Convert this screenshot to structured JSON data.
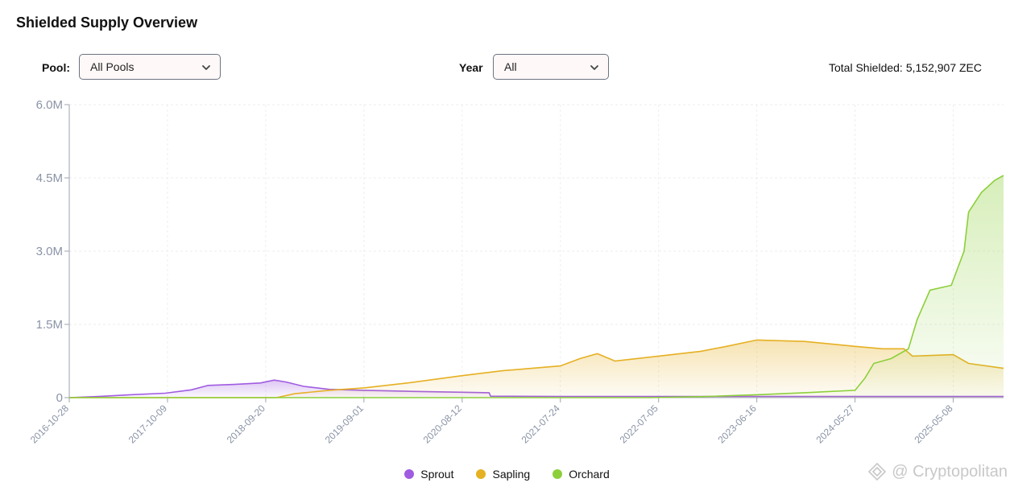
{
  "header": {
    "title": "Shielded Supply Overview"
  },
  "filters": {
    "pool_label": "Pool:",
    "pool_value": "All Pools",
    "year_label": "Year",
    "year_value": "All"
  },
  "summary": {
    "total_label": "Total Shielded:",
    "total_value": "5,152,907 ZEC"
  },
  "watermark": {
    "text": "@ Cryptopolitan"
  },
  "colors": {
    "sprout": "#a05ce0",
    "sapling": "#e6b023",
    "orchard": "#8ccf3a"
  },
  "chart_data": {
    "type": "area",
    "title": "Shielded Supply Overview",
    "xlabel": "",
    "ylabel": "",
    "x_ticks": [
      "2016-10-28",
      "2017-10-09",
      "2018-09-20",
      "2019-09-01",
      "2020-08-12",
      "2021-07-24",
      "2022-07-05",
      "2023-06-16",
      "2024-05-27",
      "2025-05-08"
    ],
    "xlim": [
      "2016-10-28",
      "2025-11-01"
    ],
    "y_ticks": [
      "0",
      "1.5M",
      "3.0M",
      "4.5M",
      "6.0M"
    ],
    "ylim": [
      0,
      6000000
    ],
    "grid": true,
    "legend_position": "bottom",
    "series": [
      {
        "name": "Sprout",
        "points": [
          [
            "2016-10-28",
            0
          ],
          [
            "2017-03-01",
            30000
          ],
          [
            "2017-06-01",
            60000
          ],
          [
            "2017-10-01",
            90000
          ],
          [
            "2018-01-01",
            160000
          ],
          [
            "2018-03-01",
            250000
          ],
          [
            "2018-06-01",
            270000
          ],
          [
            "2018-09-01",
            300000
          ],
          [
            "2018-10-20",
            360000
          ],
          [
            "2018-12-01",
            320000
          ],
          [
            "2019-02-01",
            230000
          ],
          [
            "2019-05-01",
            170000
          ],
          [
            "2019-09-01",
            150000
          ],
          [
            "2020-02-01",
            130000
          ],
          [
            "2020-08-12",
            110000
          ],
          [
            "2020-11-15",
            100000
          ],
          [
            "2020-11-20",
            30000
          ],
          [
            "2021-07-24",
            25000
          ],
          [
            "2022-07-05",
            25000
          ],
          [
            "2023-06-16",
            25000
          ],
          [
            "2024-05-27",
            25000
          ],
          [
            "2025-05-08",
            25000
          ],
          [
            "2025-11-01",
            25000
          ]
        ]
      },
      {
        "name": "Sapling",
        "points": [
          [
            "2016-10-28",
            0
          ],
          [
            "2018-10-28",
            0
          ],
          [
            "2019-01-01",
            80000
          ],
          [
            "2019-05-01",
            150000
          ],
          [
            "2019-09-01",
            200000
          ],
          [
            "2020-02-01",
            300000
          ],
          [
            "2020-08-12",
            450000
          ],
          [
            "2021-01-01",
            550000
          ],
          [
            "2021-07-24",
            650000
          ],
          [
            "2021-10-01",
            800000
          ],
          [
            "2021-12-01",
            900000
          ],
          [
            "2022-02-01",
            750000
          ],
          [
            "2022-07-05",
            850000
          ],
          [
            "2022-12-01",
            950000
          ],
          [
            "2023-03-01",
            1050000
          ],
          [
            "2023-06-16",
            1180000
          ],
          [
            "2023-12-01",
            1150000
          ],
          [
            "2024-05-27",
            1050000
          ],
          [
            "2024-09-01",
            1000000
          ],
          [
            "2024-11-15",
            1000000
          ],
          [
            "2024-12-15",
            850000
          ],
          [
            "2025-05-08",
            880000
          ],
          [
            "2025-07-01",
            700000
          ],
          [
            "2025-11-01",
            600000
          ]
        ]
      },
      {
        "name": "Orchard",
        "points": [
          [
            "2016-10-28",
            0
          ],
          [
            "2022-05-31",
            0
          ],
          [
            "2022-12-01",
            20000
          ],
          [
            "2023-06-16",
            60000
          ],
          [
            "2023-12-01",
            100000
          ],
          [
            "2024-05-27",
            150000
          ],
          [
            "2024-07-01",
            400000
          ],
          [
            "2024-08-01",
            700000
          ],
          [
            "2024-10-01",
            800000
          ],
          [
            "2024-12-01",
            1000000
          ],
          [
            "2025-01-01",
            1600000
          ],
          [
            "2025-02-15",
            2200000
          ],
          [
            "2025-05-01",
            2300000
          ],
          [
            "2025-06-15",
            3000000
          ],
          [
            "2025-07-01",
            3800000
          ],
          [
            "2025-08-15",
            4200000
          ],
          [
            "2025-10-01",
            4450000
          ],
          [
            "2025-11-01",
            4550000
          ]
        ]
      }
    ]
  }
}
